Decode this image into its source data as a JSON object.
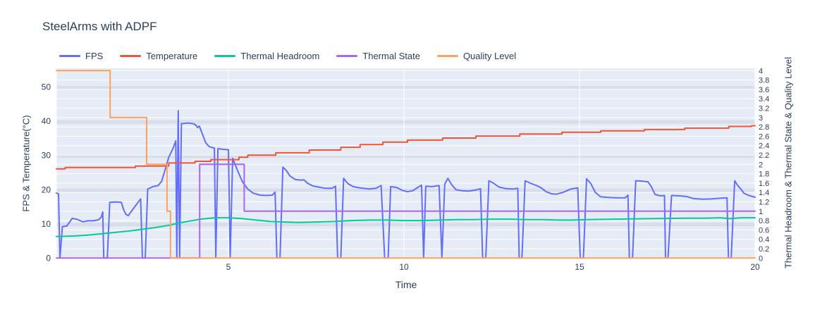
{
  "title": "SteelArms with ADPF",
  "legend": [
    {
      "label": "FPS",
      "color": "#636EFA"
    },
    {
      "label": "Temperature",
      "color": "#EF553B"
    },
    {
      "label": "Thermal Headroom",
      "color": "#00CC96"
    },
    {
      "label": "Thermal State",
      "color": "#AB63FA"
    },
    {
      "label": "Quality Level",
      "color": "#FFA15A"
    }
  ],
  "axes": {
    "x": {
      "title": "Time",
      "range": [
        0.1,
        20
      ],
      "ticks": [
        5,
        10,
        15,
        20
      ]
    },
    "y_left": {
      "title": "FPS & Temperature(°C)",
      "range": [
        0,
        55.5
      ],
      "ticks": [
        0,
        10,
        20,
        30,
        40,
        50
      ]
    },
    "y_right": {
      "title": "Thermal Headroom & Thermal State & Quality Level",
      "range": [
        0,
        4.05
      ],
      "ticks": [
        0,
        0.2,
        0.4,
        0.6,
        0.8,
        1,
        1.2,
        1.4,
        1.6,
        1.8,
        2,
        2.2,
        2.4,
        2.6,
        2.8,
        3,
        3.2,
        3.4,
        3.6,
        3.8,
        4
      ]
    }
  },
  "style": {
    "plot_bg": "#E5ECF6",
    "grid_color": "#ffffff",
    "band_color": "#c8cdd9",
    "text_color": "#2a3f5f"
  },
  "chart_data": {
    "type": "line",
    "title": "SteelArms with ADPF",
    "xlabel": "Time",
    "ylabel_left": "FPS & Temperature(°C)",
    "ylabel_right": "Thermal Headroom & Thermal State & Quality Level",
    "x_range": [
      0.1,
      20
    ],
    "y_left_range": [
      0,
      55.5
    ],
    "y_right_range": [
      0,
      4.05
    ],
    "grid": true,
    "legend_position": "top",
    "series": [
      {
        "name": "FPS",
        "axis": "left",
        "color": "#636EFA",
        "points": [
          [
            0.1,
            19
          ],
          [
            0.16,
            18.8
          ],
          [
            0.2,
            0
          ],
          [
            0.27,
            9.2
          ],
          [
            0.4,
            9.4
          ],
          [
            0.55,
            11.6
          ],
          [
            0.7,
            11.3
          ],
          [
            0.85,
            10.6
          ],
          [
            1.0,
            10.9
          ],
          [
            1.15,
            10.9
          ],
          [
            1.3,
            11.2
          ],
          [
            1.38,
            12.0
          ],
          [
            1.42,
            13.5
          ],
          [
            1.45,
            0
          ],
          [
            1.55,
            0
          ],
          [
            1.62,
            16.3
          ],
          [
            1.8,
            16.4
          ],
          [
            1.95,
            16.3
          ],
          [
            2.02,
            14.0
          ],
          [
            2.08,
            12.8
          ],
          [
            2.15,
            12.4
          ],
          [
            2.2,
            13.2
          ],
          [
            2.3,
            14.6
          ],
          [
            2.42,
            16.2
          ],
          [
            2.5,
            17.3
          ],
          [
            2.55,
            0
          ],
          [
            2.63,
            0
          ],
          [
            2.7,
            20.2
          ],
          [
            2.85,
            20.9
          ],
          [
            3.0,
            21.2
          ],
          [
            3.1,
            22.5
          ],
          [
            3.2,
            26.0
          ],
          [
            3.3,
            29.5
          ],
          [
            3.42,
            32.0
          ],
          [
            3.5,
            34.3
          ],
          [
            3.53,
            0
          ],
          [
            3.57,
            43.1
          ],
          [
            3.61,
            0
          ],
          [
            3.66,
            39.3
          ],
          [
            3.85,
            39.5
          ],
          [
            4.0,
            39.3
          ],
          [
            4.07,
            38.9
          ],
          [
            4.12,
            38.2
          ],
          [
            4.17,
            38.6
          ],
          [
            4.25,
            36.5
          ],
          [
            4.35,
            33.8
          ],
          [
            4.45,
            32.6
          ],
          [
            4.55,
            32.3
          ],
          [
            4.6,
            32.2
          ],
          [
            4.64,
            0
          ],
          [
            4.7,
            32.0
          ],
          [
            4.85,
            31.8
          ],
          [
            5.0,
            31.7
          ],
          [
            5.05,
            0
          ],
          [
            5.12,
            29.2
          ],
          [
            5.25,
            25.8
          ],
          [
            5.4,
            22.3
          ],
          [
            5.55,
            20.2
          ],
          [
            5.7,
            19.0
          ],
          [
            5.9,
            18.4
          ],
          [
            6.1,
            18.3
          ],
          [
            6.25,
            18.4
          ],
          [
            6.33,
            19.3
          ],
          [
            6.38,
            0
          ],
          [
            6.47,
            0
          ],
          [
            6.55,
            26.6
          ],
          [
            6.65,
            25.6
          ],
          [
            6.75,
            24.0
          ],
          [
            6.9,
            23.0
          ],
          [
            7.05,
            22.8
          ],
          [
            7.15,
            22.9
          ],
          [
            7.25,
            21.9
          ],
          [
            7.4,
            21.1
          ],
          [
            7.55,
            20.8
          ],
          [
            7.75,
            20.4
          ],
          [
            7.95,
            20.4
          ],
          [
            8.05,
            21.0
          ],
          [
            8.11,
            0
          ],
          [
            8.2,
            0
          ],
          [
            8.28,
            23.3
          ],
          [
            8.4,
            21.8
          ],
          [
            8.55,
            20.9
          ],
          [
            8.75,
            20.5
          ],
          [
            9.0,
            20.2
          ],
          [
            9.2,
            20.4
          ],
          [
            9.35,
            21.2
          ],
          [
            9.45,
            0
          ],
          [
            9.55,
            0
          ],
          [
            9.62,
            20.9
          ],
          [
            9.8,
            20.6
          ],
          [
            9.95,
            19.8
          ],
          [
            10.1,
            19.4
          ],
          [
            10.25,
            19.7
          ],
          [
            10.4,
            20.7
          ],
          [
            10.5,
            21.3
          ],
          [
            10.56,
            0
          ],
          [
            10.62,
            21.0
          ],
          [
            10.8,
            20.9
          ],
          [
            11.0,
            21.2
          ],
          [
            11.08,
            0
          ],
          [
            11.16,
            21.6
          ],
          [
            11.25,
            23.3
          ],
          [
            11.35,
            21.6
          ],
          [
            11.48,
            20.0
          ],
          [
            11.65,
            19.7
          ],
          [
            11.85,
            19.6
          ],
          [
            12.05,
            19.9
          ],
          [
            12.18,
            20.3
          ],
          [
            12.24,
            0
          ],
          [
            12.33,
            0
          ],
          [
            12.42,
            22.6
          ],
          [
            12.55,
            21.9
          ],
          [
            12.7,
            20.8
          ],
          [
            12.9,
            20.3
          ],
          [
            13.1,
            20.2
          ],
          [
            13.24,
            20.4
          ],
          [
            13.28,
            0
          ],
          [
            13.36,
            0
          ],
          [
            13.45,
            22.6
          ],
          [
            13.6,
            21.9
          ],
          [
            13.75,
            21.3
          ],
          [
            13.9,
            20.6
          ],
          [
            14.05,
            19.4
          ],
          [
            14.2,
            18.8
          ],
          [
            14.35,
            18.7
          ],
          [
            14.55,
            19.3
          ],
          [
            14.75,
            20.2
          ],
          [
            14.95,
            20.5
          ],
          [
            15.02,
            0
          ],
          [
            15.11,
            0
          ],
          [
            15.2,
            23.2
          ],
          [
            15.32,
            21.8
          ],
          [
            15.45,
            19.2
          ],
          [
            15.6,
            17.9
          ],
          [
            15.85,
            17.7
          ],
          [
            16.1,
            17.6
          ],
          [
            16.3,
            17.6
          ],
          [
            16.38,
            18.4
          ],
          [
            16.42,
            0
          ],
          [
            16.51,
            0
          ],
          [
            16.6,
            22.6
          ],
          [
            16.78,
            22.5
          ],
          [
            16.95,
            22.3
          ],
          [
            17.05,
            20.8
          ],
          [
            17.15,
            18.6
          ],
          [
            17.3,
            18.2
          ],
          [
            17.42,
            18.3
          ],
          [
            17.45,
            0
          ],
          [
            17.52,
            0
          ],
          [
            17.62,
            18.3
          ],
          [
            17.85,
            18.2
          ],
          [
            18.05,
            18.0
          ],
          [
            18.25,
            17.4
          ],
          [
            18.5,
            17.2
          ],
          [
            18.75,
            17.3
          ],
          [
            19.0,
            17.5
          ],
          [
            19.2,
            17.6
          ],
          [
            19.24,
            0
          ],
          [
            19.32,
            0
          ],
          [
            19.42,
            22.6
          ],
          [
            19.52,
            21.0
          ],
          [
            19.58,
            20.4
          ],
          [
            19.68,
            19.0
          ],
          [
            19.8,
            18.4
          ],
          [
            19.95,
            17.9
          ],
          [
            20,
            17.8
          ]
        ]
      },
      {
        "name": "Temperature",
        "axis": "left",
        "color": "#EF553B",
        "points": [
          [
            0.1,
            26.1
          ],
          [
            0.35,
            26.1
          ],
          [
            0.35,
            26.5
          ],
          [
            2.35,
            26.5
          ],
          [
            2.35,
            26.9
          ],
          [
            3.3,
            26.9
          ],
          [
            3.3,
            27.8
          ],
          [
            4.05,
            27.8
          ],
          [
            4.05,
            28.3
          ],
          [
            4.5,
            28.3
          ],
          [
            4.5,
            28.8
          ],
          [
            5.3,
            28.8
          ],
          [
            5.3,
            29.5
          ],
          [
            5.55,
            29.5
          ],
          [
            5.55,
            30.1
          ],
          [
            6.35,
            30.1
          ],
          [
            6.35,
            30.8
          ],
          [
            7.3,
            30.8
          ],
          [
            7.3,
            31.6
          ],
          [
            8.2,
            31.6
          ],
          [
            8.2,
            32.4
          ],
          [
            8.75,
            32.4
          ],
          [
            8.75,
            33.2
          ],
          [
            9.4,
            33.2
          ],
          [
            9.4,
            33.9
          ],
          [
            10.1,
            33.9
          ],
          [
            10.1,
            34.5
          ],
          [
            11.1,
            34.5
          ],
          [
            11.1,
            35.1
          ],
          [
            12.05,
            35.1
          ],
          [
            12.05,
            35.7
          ],
          [
            13.3,
            35.7
          ],
          [
            13.3,
            36.3
          ],
          [
            14.5,
            36.3
          ],
          [
            14.5,
            36.8
          ],
          [
            15.6,
            36.8
          ],
          [
            15.6,
            37.2
          ],
          [
            16.85,
            37.2
          ],
          [
            16.85,
            37.6
          ],
          [
            18.0,
            37.6
          ],
          [
            18.0,
            38.0
          ],
          [
            19.25,
            38.0
          ],
          [
            19.25,
            38.5
          ],
          [
            19.9,
            38.5
          ],
          [
            19.9,
            38.7
          ],
          [
            20,
            38.7
          ]
        ]
      },
      {
        "name": "Thermal Headroom",
        "axis": "right",
        "color": "#00CC96",
        "points": [
          [
            0.1,
            0.46
          ],
          [
            0.6,
            0.47
          ],
          [
            1.0,
            0.49
          ],
          [
            1.4,
            0.52
          ],
          [
            1.8,
            0.55
          ],
          [
            2.2,
            0.58
          ],
          [
            2.6,
            0.62
          ],
          [
            3.0,
            0.66
          ],
          [
            3.3,
            0.7
          ],
          [
            3.6,
            0.75
          ],
          [
            3.9,
            0.79
          ],
          [
            4.2,
            0.83
          ],
          [
            4.6,
            0.86
          ],
          [
            5.0,
            0.86
          ],
          [
            5.4,
            0.84
          ],
          [
            5.8,
            0.81
          ],
          [
            6.2,
            0.78
          ],
          [
            6.6,
            0.77
          ],
          [
            7.0,
            0.76
          ],
          [
            7.5,
            0.77
          ],
          [
            8.0,
            0.78
          ],
          [
            8.5,
            0.8
          ],
          [
            9.0,
            0.81
          ],
          [
            9.5,
            0.81
          ],
          [
            10.0,
            0.8
          ],
          [
            10.5,
            0.8
          ],
          [
            11.0,
            0.81
          ],
          [
            11.5,
            0.82
          ],
          [
            12.0,
            0.82
          ],
          [
            12.5,
            0.83
          ],
          [
            13.0,
            0.83
          ],
          [
            13.5,
            0.82
          ],
          [
            14.0,
            0.82
          ],
          [
            14.4,
            0.81
          ],
          [
            14.8,
            0.81
          ],
          [
            15.2,
            0.82
          ],
          [
            16.0,
            0.83
          ],
          [
            17.0,
            0.84
          ],
          [
            18.0,
            0.85
          ],
          [
            18.6,
            0.85
          ],
          [
            19.0,
            0.86
          ],
          [
            19.3,
            0.84
          ],
          [
            19.6,
            0.86
          ],
          [
            20,
            0.86
          ]
        ]
      },
      {
        "name": "Thermal State",
        "axis": "right",
        "color": "#AB63FA",
        "points": [
          [
            0.1,
            0
          ],
          [
            4.18,
            0
          ],
          [
            4.18,
            2
          ],
          [
            5.45,
            2
          ],
          [
            5.45,
            1
          ],
          [
            20,
            1
          ]
        ]
      },
      {
        "name": "Quality Level",
        "axis": "right",
        "color": "#FFA15A",
        "points": [
          [
            0.1,
            4
          ],
          [
            1.63,
            4
          ],
          [
            1.63,
            3
          ],
          [
            2.67,
            3
          ],
          [
            2.67,
            2
          ],
          [
            3.25,
            2
          ],
          [
            3.25,
            1
          ],
          [
            3.35,
            1
          ],
          [
            3.35,
            0
          ],
          [
            20,
            0
          ]
        ]
      }
    ]
  }
}
